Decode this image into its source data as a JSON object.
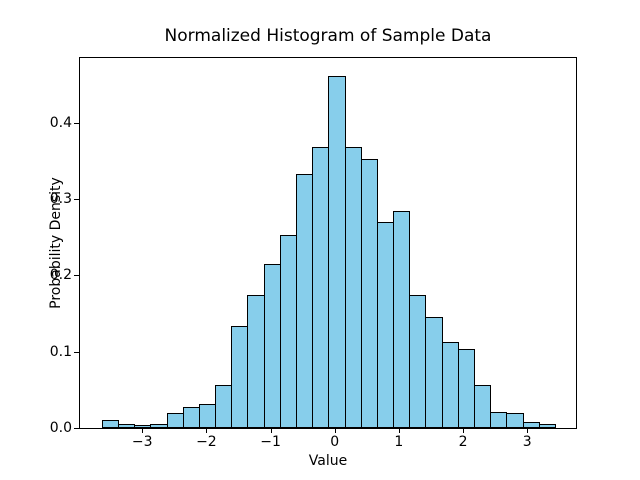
{
  "chart_data": {
    "type": "bar",
    "subtype": "histogram",
    "title": "Normalized Histogram of Sample Data",
    "xlabel": "Value",
    "ylabel": "Probability Density",
    "bin_start": -3.63,
    "bin_width": 0.2522,
    "values": [
      0.01,
      0.005,
      0.004,
      0.005,
      0.02,
      0.027,
      0.032,
      0.057,
      0.134,
      0.175,
      0.215,
      0.253,
      0.333,
      0.369,
      0.462,
      0.368,
      0.353,
      0.27,
      0.284,
      0.175,
      0.146,
      0.113,
      0.103,
      0.056,
      0.021,
      0.02,
      0.008,
      0.005
    ],
    "xlim": [
      -3.97,
      3.76
    ],
    "ylim": [
      0,
      0.485
    ],
    "x_ticks": [
      -3,
      -2,
      -1,
      0,
      1,
      2,
      3
    ],
    "x_tick_labels": [
      "−3",
      "−2",
      "−1",
      "0",
      "1",
      "2",
      "3"
    ],
    "y_ticks": [
      0.0,
      0.1,
      0.2,
      0.3,
      0.4
    ],
    "y_tick_labels": [
      "0.0",
      "0.1",
      "0.2",
      "0.3",
      "0.4"
    ],
    "bar_color": "#87CEEB",
    "edge_color": "#000000",
    "grid": false,
    "legend": null
  }
}
